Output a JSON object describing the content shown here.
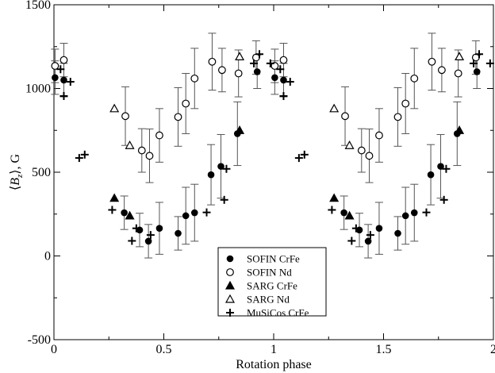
{
  "chart_data": {
    "type": "scatter",
    "xlabel": "Rotation phase",
    "ylabel": "⟨B_z⟩, G",
    "xlim": [
      0,
      2
    ],
    "ylim": [
      -500,
      1500
    ],
    "xticks": [
      "0",
      "0.5",
      "1",
      "1.5",
      "2"
    ],
    "yticks": [
      "-500",
      "0",
      "500",
      "1000",
      "1500"
    ],
    "legend_position": "bottom-center",
    "series": [
      {
        "name": "SOFIN CrFe",
        "marker": "filled-circle",
        "points": [
          {
            "x": 0.005,
            "y": 1065,
            "err": 100
          },
          {
            "x": 0.045,
            "y": 1050,
            "err": 100
          },
          {
            "x": 0.32,
            "y": 258,
            "err": 100
          },
          {
            "x": 0.39,
            "y": 155,
            "err": 100
          },
          {
            "x": 0.43,
            "y": 88,
            "err": 100
          },
          {
            "x": 0.48,
            "y": 165,
            "err": 155
          },
          {
            "x": 0.565,
            "y": 135,
            "err": 100
          },
          {
            "x": 0.6,
            "y": 240,
            "err": 170
          },
          {
            "x": 0.64,
            "y": 258,
            "err": 170
          },
          {
            "x": 0.715,
            "y": 485,
            "err": 180
          },
          {
            "x": 0.76,
            "y": 535,
            "err": 190
          },
          {
            "x": 0.835,
            "y": 730,
            "err": 190
          },
          {
            "x": 0.925,
            "y": 1100,
            "err": 100
          },
          {
            "x": 1.005,
            "y": 1065,
            "err": 100
          },
          {
            "x": 1.045,
            "y": 1050,
            "err": 100
          },
          {
            "x": 1.32,
            "y": 258,
            "err": 100
          },
          {
            "x": 1.39,
            "y": 155,
            "err": 100
          },
          {
            "x": 1.43,
            "y": 88,
            "err": 100
          },
          {
            "x": 1.48,
            "y": 165,
            "err": 155
          },
          {
            "x": 1.565,
            "y": 135,
            "err": 100
          },
          {
            "x": 1.6,
            "y": 240,
            "err": 170
          },
          {
            "x": 1.64,
            "y": 258,
            "err": 170
          },
          {
            "x": 1.715,
            "y": 485,
            "err": 180
          },
          {
            "x": 1.76,
            "y": 535,
            "err": 190
          },
          {
            "x": 1.835,
            "y": 730,
            "err": 190
          },
          {
            "x": 1.925,
            "y": 1100,
            "err": 100
          }
        ]
      },
      {
        "name": "SOFIN Nd",
        "marker": "open-circle",
        "points": [
          {
            "x": 0.005,
            "y": 1135,
            "err": 100
          },
          {
            "x": 0.045,
            "y": 1170,
            "err": 100
          },
          {
            "x": 0.325,
            "y": 835,
            "err": 175
          },
          {
            "x": 0.4,
            "y": 630,
            "err": 130
          },
          {
            "x": 0.435,
            "y": 598,
            "err": 160
          },
          {
            "x": 0.48,
            "y": 720,
            "err": 160
          },
          {
            "x": 0.565,
            "y": 830,
            "err": 175
          },
          {
            "x": 0.6,
            "y": 910,
            "err": 180
          },
          {
            "x": 0.64,
            "y": 1060,
            "err": 180
          },
          {
            "x": 0.72,
            "y": 1160,
            "err": 170
          },
          {
            "x": 0.765,
            "y": 1110,
            "err": 130
          },
          {
            "x": 0.84,
            "y": 1090,
            "err": 140
          },
          {
            "x": 0.92,
            "y": 1185,
            "err": 100
          },
          {
            "x": 1.005,
            "y": 1135,
            "err": 100
          },
          {
            "x": 1.045,
            "y": 1170,
            "err": 100
          },
          {
            "x": 1.325,
            "y": 835,
            "err": 175
          },
          {
            "x": 1.4,
            "y": 630,
            "err": 130
          },
          {
            "x": 1.435,
            "y": 598,
            "err": 160
          },
          {
            "x": 1.48,
            "y": 720,
            "err": 160
          },
          {
            "x": 1.565,
            "y": 830,
            "err": 175
          },
          {
            "x": 1.6,
            "y": 910,
            "err": 180
          },
          {
            "x": 1.64,
            "y": 1060,
            "err": 180
          },
          {
            "x": 1.72,
            "y": 1160,
            "err": 170
          },
          {
            "x": 1.765,
            "y": 1110,
            "err": 130
          },
          {
            "x": 1.84,
            "y": 1090,
            "err": 140
          },
          {
            "x": 1.92,
            "y": 1185,
            "err": 100
          }
        ]
      },
      {
        "name": "SARG CrFe",
        "marker": "filled-triangle",
        "points": [
          {
            "x": 0.275,
            "y": 345
          },
          {
            "x": 0.345,
            "y": 240
          },
          {
            "x": 0.845,
            "y": 750
          },
          {
            "x": 1.275,
            "y": 345
          },
          {
            "x": 1.345,
            "y": 240
          },
          {
            "x": 1.845,
            "y": 750
          }
        ]
      },
      {
        "name": "SARG Nd",
        "marker": "open-triangle",
        "points": [
          {
            "x": 0.275,
            "y": 880
          },
          {
            "x": 0.345,
            "y": 660
          },
          {
            "x": 0.845,
            "y": 1190
          },
          {
            "x": 1.275,
            "y": 880
          },
          {
            "x": 1.345,
            "y": 660
          },
          {
            "x": 1.845,
            "y": 1190
          }
        ]
      },
      {
        "name": "MuSiCos CrFe",
        "marker": "plus",
        "points": [
          {
            "x": 0.03,
            "y": 1115
          },
          {
            "x": 0.045,
            "y": 955
          },
          {
            "x": 0.075,
            "y": 1040
          },
          {
            "x": 0.115,
            "y": 585
          },
          {
            "x": 0.14,
            "y": 605
          },
          {
            "x": 0.265,
            "y": 275
          },
          {
            "x": 0.355,
            "y": 90
          },
          {
            "x": 0.375,
            "y": 165
          },
          {
            "x": 0.44,
            "y": 125
          },
          {
            "x": 0.695,
            "y": 260
          },
          {
            "x": 0.775,
            "y": 335
          },
          {
            "x": 0.785,
            "y": 520
          },
          {
            "x": 0.91,
            "y": 1150
          },
          {
            "x": 0.935,
            "y": 1205
          },
          {
            "x": 0.985,
            "y": 1150
          },
          {
            "x": 1.03,
            "y": 1115
          },
          {
            "x": 1.045,
            "y": 955
          },
          {
            "x": 1.075,
            "y": 1040
          },
          {
            "x": 1.115,
            "y": 585
          },
          {
            "x": 1.14,
            "y": 605
          },
          {
            "x": 1.265,
            "y": 275
          },
          {
            "x": 1.355,
            "y": 90
          },
          {
            "x": 1.375,
            "y": 165
          },
          {
            "x": 1.44,
            "y": 125
          },
          {
            "x": 1.695,
            "y": 260
          },
          {
            "x": 1.775,
            "y": 335
          },
          {
            "x": 1.785,
            "y": 520
          },
          {
            "x": 1.91,
            "y": 1150
          },
          {
            "x": 1.935,
            "y": 1205
          },
          {
            "x": 1.985,
            "y": 1150
          }
        ]
      }
    ]
  }
}
